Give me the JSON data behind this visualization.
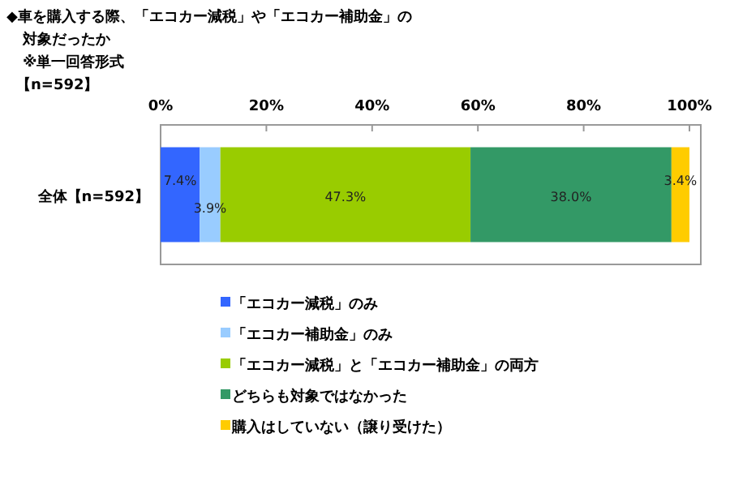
{
  "chart_data": {
    "type": "bar",
    "orientation": "horizontal",
    "stacked": true,
    "title": "◆車を購入する際、「エコカー減税」や「エコカー補助金」の対象だったか",
    "subtitle": "※単一回答形式",
    "annotations": [
      "【n=592】"
    ],
    "categories": [
      "全体【n=592】"
    ],
    "series": [
      {
        "name": "「エコカー減税」のみ",
        "color": "#3366ff",
        "values": [
          7.4
        ],
        "value_labels": [
          "7.4%"
        ]
      },
      {
        "name": "「エコカー補助金」のみ",
        "color": "#99ccff",
        "values": [
          3.9
        ],
        "value_labels": [
          "3.9%"
        ]
      },
      {
        "name": "「エコカー減税」と「エコカー補助金」の両方",
        "color": "#99cc00",
        "values": [
          47.3
        ],
        "value_labels": [
          "47.3%"
        ]
      },
      {
        "name": "どちらも対象ではなかった",
        "color": "#339966",
        "values": [
          38.0
        ],
        "value_labels": [
          "38.0%"
        ]
      },
      {
        "name": "購入はしていない（譲り受けた）",
        "color": "#ffcc00",
        "values": [
          3.4
        ],
        "value_labels": [
          "3.4%"
        ]
      }
    ],
    "xlim": [
      0,
      100
    ],
    "xticks": [
      {
        "value": 0,
        "label": "0%"
      },
      {
        "value": 20,
        "label": "20%"
      },
      {
        "value": 40,
        "label": "40%"
      },
      {
        "value": 60,
        "label": "60%"
      },
      {
        "value": 80,
        "label": "80%"
      },
      {
        "value": 100,
        "label": "100%"
      }
    ],
    "grid": false,
    "legend": "bottom"
  }
}
